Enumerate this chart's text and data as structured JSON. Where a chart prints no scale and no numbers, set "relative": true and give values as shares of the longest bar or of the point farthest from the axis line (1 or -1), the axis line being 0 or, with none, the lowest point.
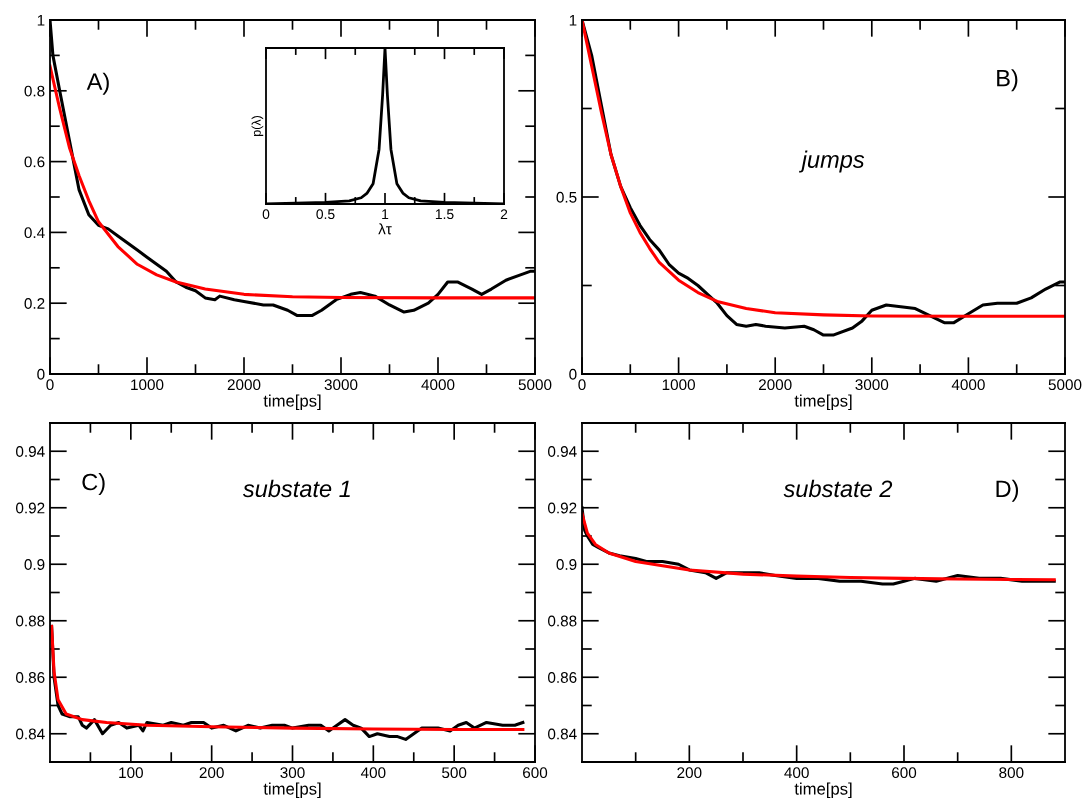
{
  "chart_data": [
    {
      "type": "line",
      "xlabel": "time[ps]",
      "xlim": [
        0,
        5000
      ],
      "ylim": [
        0,
        1
      ],
      "xticks": [
        0,
        {
          "value": 500,
          "label": null
        },
        1000,
        {
          "value": 1500,
          "label": null
        },
        2000,
        {
          "value": 2500,
          "label": null
        },
        3000,
        {
          "value": 3500,
          "label": null
        },
        4000,
        {
          "value": 4500,
          "label": null
        },
        5000
      ],
      "yticks": [
        0,
        {
          "value": 0.1,
          "label": null
        },
        0.2,
        {
          "value": 0.3,
          "label": null
        },
        0.4,
        {
          "value": 0.5,
          "label": null
        },
        0.6,
        {
          "value": 0.7,
          "label": null
        },
        0.8,
        {
          "value": 0.9,
          "label": null
        },
        1
      ],
      "annotations": [
        "A)"
      ],
      "marker": "none",
      "line_style": "solid",
      "series": [
        {
          "color": "#000000",
          "x": [
            0,
            30,
            100,
            200,
            300,
            400,
            500,
            600,
            700,
            800,
            900,
            1000,
            1100,
            1200,
            1300,
            1400,
            1500,
            1600,
            1700,
            1750,
            1900,
            2000,
            2200,
            2300,
            2450,
            2550,
            2700,
            2800,
            2950,
            3100,
            3200,
            3350,
            3500,
            3650,
            3750,
            3900,
            4000,
            4100,
            4200,
            4350,
            4450,
            4550,
            4700,
            4850,
            4950,
            5000
          ],
          "values": [
            1.0,
            0.9,
            0.8,
            0.66,
            0.52,
            0.45,
            0.42,
            0.41,
            0.39,
            0.37,
            0.35,
            0.33,
            0.31,
            0.29,
            0.26,
            0.245,
            0.235,
            0.215,
            0.21,
            0.22,
            0.21,
            0.205,
            0.195,
            0.195,
            0.18,
            0.165,
            0.165,
            0.18,
            0.21,
            0.225,
            0.23,
            0.22,
            0.195,
            0.175,
            0.18,
            0.2,
            0.225,
            0.26,
            0.26,
            0.24,
            0.225,
            0.24,
            0.265,
            0.28,
            0.29,
            0.29
          ]
        },
        {
          "color": "#ff0000",
          "x": [
            0,
            100,
            200,
            300,
            400,
            500,
            700,
            900,
            1100,
            1300,
            1600,
            2000,
            2500,
            3000,
            4000,
            5000
          ],
          "values": [
            0.87,
            0.75,
            0.64,
            0.56,
            0.49,
            0.43,
            0.36,
            0.31,
            0.28,
            0.26,
            0.24,
            0.225,
            0.218,
            0.216,
            0.215,
            0.215
          ]
        }
      ]
    },
    {
      "type": "line",
      "relative": true,
      "xlabel": "λτ",
      "ylabel": "p(λ)",
      "xlim": [
        0,
        2
      ],
      "tick_labels": "x",
      "xticks": [
        0,
        {
          "value": 0.25,
          "label": null
        },
        0.5,
        {
          "value": 0.75,
          "label": null
        },
        1,
        {
          "value": 1.25,
          "label": null
        },
        1.5,
        {
          "value": 1.75,
          "label": null
        },
        2
      ],
      "marker": "none",
      "line_style": "solid",
      "series": [
        {
          "color": "#000000",
          "x": [
            0,
            0.5,
            0.7,
            0.8,
            0.85,
            0.9,
            0.95,
            0.98,
            1.0,
            1.02,
            1.05,
            1.1,
            1.15,
            1.2,
            1.3,
            1.5,
            2
          ],
          "values": [
            0,
            0.01,
            0.02,
            0.04,
            0.07,
            0.13,
            0.35,
            0.7,
            1.0,
            0.7,
            0.35,
            0.13,
            0.07,
            0.04,
            0.02,
            0.01,
            0
          ]
        }
      ]
    },
    {
      "type": "line",
      "xlabel": "time[ps]",
      "xlim": [
        0,
        5000
      ],
      "ylim": [
        0,
        1
      ],
      "xticks": [
        0,
        {
          "value": 500,
          "label": null
        },
        1000,
        {
          "value": 1500,
          "label": null
        },
        2000,
        {
          "value": 2500,
          "label": null
        },
        3000,
        {
          "value": 3500,
          "label": null
        },
        4000,
        {
          "value": 4500,
          "label": null
        },
        5000
      ],
      "yticks": [
        0,
        {
          "value": 0.25,
          "label": null
        },
        0.5,
        {
          "value": 0.75,
          "label": null
        },
        1
      ],
      "annotations": [
        "B)",
        "jumps"
      ],
      "marker": "none",
      "line_style": "solid",
      "series": [
        {
          "color": "#000000",
          "x": [
            0,
            100,
            200,
            300,
            400,
            500,
            600,
            700,
            800,
            900,
            1000,
            1100,
            1200,
            1300,
            1400,
            1500,
            1600,
            1700,
            1800,
            1900,
            2100,
            2300,
            2400,
            2500,
            2600,
            2800,
            2900,
            3000,
            3150,
            3300,
            3450,
            3600,
            3750,
            3850,
            4000,
            4150,
            4300,
            4500,
            4650,
            4800,
            4950,
            5000
          ],
          "values": [
            1.0,
            0.9,
            0.76,
            0.62,
            0.53,
            0.47,
            0.42,
            0.38,
            0.35,
            0.31,
            0.285,
            0.27,
            0.25,
            0.225,
            0.2,
            0.165,
            0.14,
            0.135,
            0.14,
            0.135,
            0.13,
            0.135,
            0.125,
            0.11,
            0.11,
            0.13,
            0.15,
            0.18,
            0.195,
            0.19,
            0.185,
            0.165,
            0.145,
            0.145,
            0.17,
            0.195,
            0.2,
            0.2,
            0.215,
            0.24,
            0.26,
            0.26
          ]
        },
        {
          "color": "#ff0000",
          "x": [
            0,
            100,
            200,
            300,
            400,
            500,
            600,
            700,
            800,
            1000,
            1200,
            1400,
            1700,
            2000,
            2500,
            3000,
            4000,
            5000
          ],
          "values": [
            1.0,
            0.87,
            0.74,
            0.62,
            0.53,
            0.455,
            0.4,
            0.355,
            0.315,
            0.265,
            0.23,
            0.205,
            0.185,
            0.173,
            0.167,
            0.164,
            0.163,
            0.163
          ]
        }
      ]
    },
    {
      "type": "line",
      "xlabel": "time[ps]",
      "xlim": [
        0,
        600
      ],
      "ylim": [
        0.83,
        0.95
      ],
      "xticks": [
        {
          "value": 50,
          "label": null
        },
        100,
        {
          "value": 150,
          "label": null
        },
        200,
        {
          "value": 250,
          "label": null
        },
        300,
        {
          "value": 350,
          "label": null
        },
        400,
        {
          "value": 450,
          "label": null
        },
        500,
        {
          "value": 550,
          "label": null
        },
        600
      ],
      "yticks": [
        0.84,
        {
          "value": 0.85,
          "label": null
        },
        0.86,
        {
          "value": 0.87,
          "label": null
        },
        0.88,
        {
          "value": 0.89,
          "label": null
        },
        0.9,
        {
          "value": 0.91,
          "label": null
        },
        0.92,
        {
          "value": 0.93,
          "label": null
        },
        0.94
      ],
      "annotations": [
        "C)",
        "substate 1"
      ],
      "marker": "none",
      "line_style": "solid",
      "series": [
        {
          "color": "#000000",
          "x": [
            2,
            5,
            10,
            15,
            25,
            35,
            40,
            45,
            55,
            65,
            75,
            85,
            95,
            110,
            115,
            120,
            140,
            150,
            165,
            175,
            190,
            200,
            215,
            230,
            245,
            260,
            275,
            290,
            300,
            320,
            335,
            345,
            355,
            365,
            375,
            385,
            395,
            405,
            420,
            430,
            440,
            450,
            460,
            480,
            495,
            505,
            515,
            525,
            540,
            560,
            575,
            585
          ],
          "values": [
            0.878,
            0.86,
            0.85,
            0.847,
            0.846,
            0.846,
            0.843,
            0.842,
            0.845,
            0.84,
            0.843,
            0.844,
            0.842,
            0.843,
            0.841,
            0.844,
            0.843,
            0.844,
            0.843,
            0.844,
            0.844,
            0.842,
            0.843,
            0.841,
            0.843,
            0.842,
            0.843,
            0.843,
            0.842,
            0.843,
            0.843,
            0.841,
            0.843,
            0.845,
            0.843,
            0.842,
            0.839,
            0.84,
            0.839,
            0.839,
            0.838,
            0.84,
            0.842,
            0.842,
            0.841,
            0.843,
            0.844,
            0.842,
            0.844,
            0.843,
            0.843,
            0.844
          ]
        },
        {
          "color": "#ff0000",
          "x": [
            2,
            5,
            10,
            20,
            40,
            70,
            120,
            200,
            300,
            400,
            500,
            585
          ],
          "values": [
            0.878,
            0.862,
            0.852,
            0.847,
            0.845,
            0.844,
            0.843,
            0.8425,
            0.842,
            0.8417,
            0.8415,
            0.8415
          ]
        }
      ]
    },
    {
      "type": "line",
      "xlabel": "time[ps]",
      "xlim": [
        0,
        900
      ],
      "ylim": [
        0.83,
        0.95
      ],
      "xticks": [
        {
          "value": 100,
          "label": null
        },
        200,
        {
          "value": 300,
          "label": null
        },
        400,
        {
          "value": 500,
          "label": null
        },
        600,
        {
          "value": 700,
          "label": null
        },
        800
      ],
      "yticks": [
        0.84,
        {
          "value": 0.85,
          "label": null
        },
        0.86,
        {
          "value": 0.87,
          "label": null
        },
        0.88,
        {
          "value": 0.89,
          "label": null
        },
        0.9,
        {
          "value": 0.91,
          "label": null
        },
        0.92,
        {
          "value": 0.93,
          "label": null
        },
        0.94
      ],
      "annotations": [
        "substate 2",
        "D)"
      ],
      "marker": "none",
      "line_style": "solid",
      "series": [
        {
          "color": "#000000",
          "x": [
            0,
            5,
            10,
            20,
            30,
            50,
            70,
            100,
            120,
            150,
            180,
            200,
            230,
            250,
            270,
            300,
            330,
            360,
            400,
            440,
            480,
            520,
            560,
            580,
            600,
            620,
            660,
            700,
            740,
            780,
            820,
            860,
            880
          ],
          "values": [
            0.92,
            0.912,
            0.91,
            0.907,
            0.906,
            0.904,
            0.903,
            0.902,
            0.901,
            0.901,
            0.9,
            0.898,
            0.897,
            0.895,
            0.897,
            0.897,
            0.897,
            0.896,
            0.895,
            0.895,
            0.894,
            0.894,
            0.893,
            0.893,
            0.894,
            0.895,
            0.894,
            0.896,
            0.895,
            0.895,
            0.894,
            0.894,
            0.894
          ]
        },
        {
          "color": "#ff0000",
          "x": [
            0,
            10,
            25,
            50,
            100,
            150,
            200,
            300,
            400,
            500,
            600,
            700,
            800,
            880
          ],
          "values": [
            0.918,
            0.911,
            0.907,
            0.904,
            0.901,
            0.8995,
            0.898,
            0.8965,
            0.8958,
            0.8953,
            0.895,
            0.8948,
            0.8946,
            0.8945
          ]
        }
      ]
    }
  ]
}
